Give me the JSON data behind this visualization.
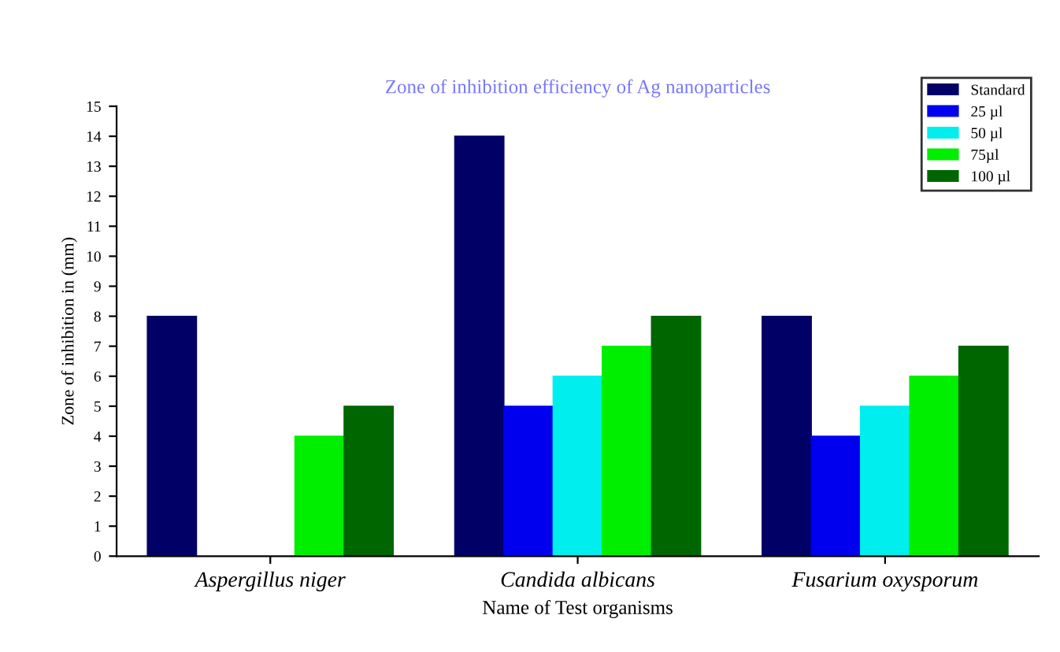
{
  "chart_data": {
    "type": "bar",
    "title": "Zone of inhibition efficiency of Ag nanoparticles",
    "xlabel": "Name of Test organisms",
    "ylabel": "Zone of inhibition in (mm)",
    "categories": [
      "Aspergillus niger",
      "Candida albicans",
      "Fusarium oxysporum"
    ],
    "series": [
      {
        "name": "Standard",
        "color": "#000066",
        "values": [
          8,
          14,
          8
        ]
      },
      {
        "name": "25 µl",
        "color": "#0000ee",
        "values": [
          null,
          5,
          4
        ]
      },
      {
        "name": "50 µl",
        "color": "#00eeee",
        "values": [
          null,
          6,
          5
        ]
      },
      {
        "name": "75µl",
        "color": "#00ee00",
        "values": [
          4,
          7,
          6
        ]
      },
      {
        "name": "100 µl",
        "color": "#006600",
        "values": [
          5,
          8,
          7
        ]
      }
    ],
    "ylim": [
      0,
      15
    ],
    "yticks": [
      0,
      1,
      2,
      3,
      4,
      5,
      6,
      7,
      8,
      9,
      10,
      11,
      12,
      13,
      14,
      15
    ],
    "grid": false,
    "legend": "top right"
  }
}
